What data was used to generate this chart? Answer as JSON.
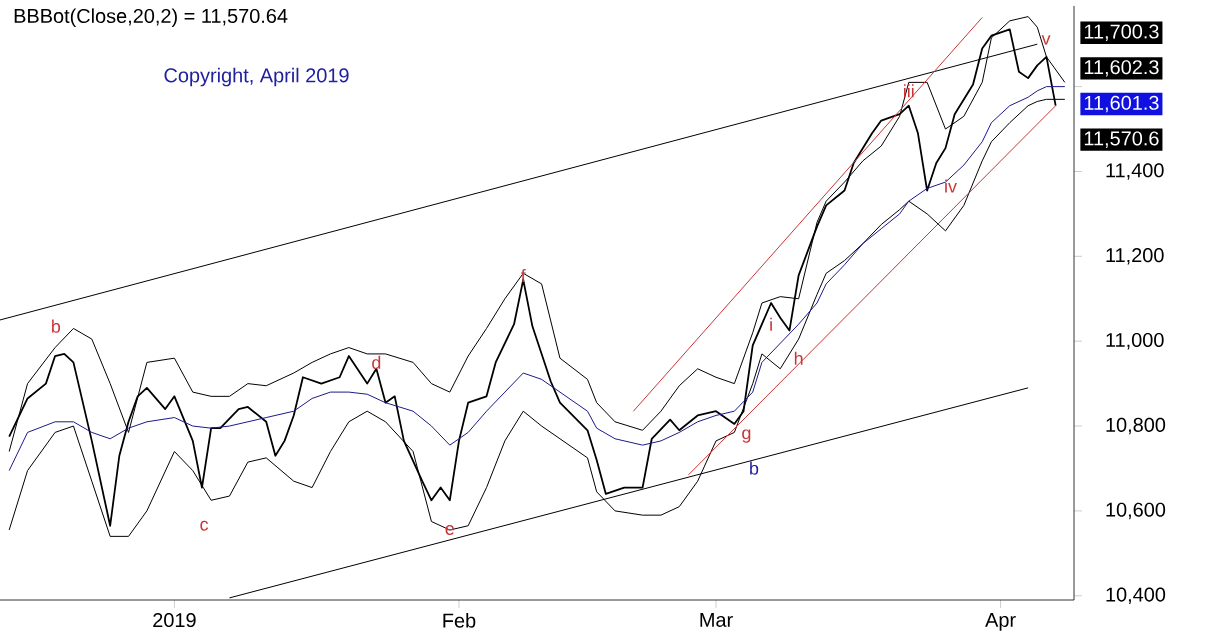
{
  "chart_data": {
    "type": "line",
    "x": [
      "2018-12-14",
      "2018-12-16",
      "2018-12-19",
      "2018-12-21",
      "2018-12-23",
      "2018-12-25",
      "2018-12-27",
      "2018-12-29",
      "2019-01-01",
      "2019-01-03",
      "2019-01-05",
      "2019-01-07",
      "2019-01-09",
      "2019-01-11",
      "2019-01-14",
      "2019-01-16",
      "2019-01-18",
      "2019-01-20",
      "2019-01-22",
      "2019-01-24",
      "2019-01-27",
      "2019-01-29",
      "2019-01-31",
      "2019-02-02",
      "2019-02-04",
      "2019-02-06",
      "2019-02-08",
      "2019-02-10",
      "2019-02-12",
      "2019-02-15",
      "2019-02-16",
      "2019-02-18",
      "2019-02-21",
      "2019-02-23",
      "2019-02-25",
      "2019-02-27",
      "2019-03-01",
      "2019-03-03",
      "2019-03-05",
      "2019-03-06",
      "2019-03-08",
      "2019-03-10",
      "2019-03-12",
      "2019-03-13",
      "2019-03-15",
      "2019-03-17",
      "2019-03-19",
      "2019-03-21",
      "2019-03-22",
      "2019-03-24",
      "2019-03-26",
      "2019-03-28",
      "2019-03-30",
      "2019-03-31",
      "2019-04-02",
      "2019-04-04",
      "2019-04-05",
      "2019-04-06",
      "2019-04-08"
    ],
    "series": [
      {
        "color": "#000000",
        "x": [
          "2018-12-14",
          "2018-12-16",
          "2018-12-18",
          "2018-12-19",
          "2018-12-20",
          "2018-12-21",
          "2018-12-23",
          "2018-12-25",
          "2018-12-26",
          "2018-12-27",
          "2018-12-28",
          "2018-12-29",
          "2018-12-31",
          "2019-01-01",
          "2019-01-03",
          "2019-01-04",
          "2019-01-05",
          "2019-01-06",
          "2019-01-08",
          "2019-01-09",
          "2019-01-11",
          "2019-01-12",
          "2019-01-13",
          "2019-01-14",
          "2019-01-15",
          "2019-01-17",
          "2019-01-19",
          "2019-01-20",
          "2019-01-22",
          "2019-01-23",
          "2019-01-24",
          "2019-01-25",
          "2019-01-26",
          "2019-01-28",
          "2019-01-29",
          "2019-01-30",
          "2019-01-31",
          "2019-02-01",
          "2019-02-02",
          "2019-02-04",
          "2019-02-05",
          "2019-02-07",
          "2019-02-08",
          "2019-02-09",
          "2019-02-11",
          "2019-02-12",
          "2019-02-15",
          "2019-02-16",
          "2019-02-17",
          "2019-02-19",
          "2019-02-21",
          "2019-02-22",
          "2019-02-24",
          "2019-02-25",
          "2019-02-27",
          "2019-03-01",
          "2019-03-03",
          "2019-03-04",
          "2019-03-05",
          "2019-03-07",
          "2019-03-08",
          "2019-03-09",
          "2019-03-10",
          "2019-03-12",
          "2019-03-13",
          "2019-03-15",
          "2019-03-16",
          "2019-03-18",
          "2019-03-19",
          "2019-03-21",
          "2019-03-22",
          "2019-03-23",
          "2019-03-24",
          "2019-03-25",
          "2019-03-26",
          "2019-03-27",
          "2019-03-29",
          "2019-03-30",
          "2019-03-31",
          "2019-04-02",
          "2019-04-03",
          "2019-04-04",
          "2019-04-05",
          "2019-04-06",
          "2019-04-07"
        ],
        "values": [
          10775,
          10865,
          10900,
          10965,
          10970,
          10950,
          10765,
          10565,
          10730,
          10810,
          10870,
          10890,
          10840,
          10870,
          10765,
          10655,
          10795,
          10795,
          10840,
          10845,
          10810,
          10730,
          10765,
          10825,
          10915,
          10900,
          10915,
          10965,
          10900,
          10935,
          10855,
          10870,
          10765,
          10670,
          10625,
          10655,
          10625,
          10765,
          10855,
          10870,
          10950,
          11040,
          11145,
          11035,
          10905,
          10855,
          10790,
          10720,
          10640,
          10655,
          10655,
          10770,
          10815,
          10790,
          10825,
          10835,
          10805,
          10835,
          10990,
          11090,
          11055,
          11025,
          11155,
          11270,
          11320,
          11355,
          11420,
          11490,
          11520,
          11535,
          11555,
          11490,
          11355,
          11420,
          11455,
          11535,
          11605,
          11690,
          11720,
          11735,
          11635,
          11620,
          11650,
          11670,
          11555
        ]
      },
      {
        "color": "#000000",
        "values": [
          10740,
          10900,
          10985,
          11030,
          11005,
          10900,
          10785,
          10950,
          10960,
          10880,
          10870,
          10870,
          10900,
          10895,
          10925,
          10950,
          10970,
          10985,
          10970,
          10970,
          10950,
          10900,
          10880,
          10965,
          11030,
          11100,
          11160,
          11135,
          10960,
          10910,
          10855,
          10810,
          10790,
          10835,
          10895,
          10935,
          10915,
          10900,
          11020,
          11090,
          11105,
          11100,
          11280,
          11330,
          11375,
          11425,
          11460,
          11530,
          11610,
          11610,
          11500,
          11530,
          11610,
          11715,
          11755,
          11765,
          11740,
          11670,
          11610
        ]
      },
      {
        "color": "#000000",
        "values": [
          10555,
          10695,
          10785,
          10800,
          10670,
          10540,
          10540,
          10600,
          10740,
          10695,
          10625,
          10635,
          10715,
          10725,
          10670,
          10655,
          10740,
          10810,
          10835,
          10810,
          10740,
          10575,
          10555,
          10565,
          10655,
          10765,
          10835,
          10800,
          10770,
          10725,
          10645,
          10600,
          10590,
          10590,
          10610,
          10670,
          10765,
          10785,
          10900,
          10970,
          10935,
          11005,
          11110,
          11160,
          11190,
          11230,
          11275,
          11310,
          11330,
          11300,
          11260,
          11320,
          11425,
          11470,
          11515,
          11555,
          11565,
          11570,
          11570
        ]
      },
      {
        "color": "#1a1a8c",
        "values": [
          10695,
          10785,
          10810,
          10810,
          10785,
          10770,
          10795,
          10810,
          10820,
          10800,
          10795,
          10800,
          10810,
          10820,
          10835,
          10865,
          10880,
          10880,
          10875,
          10855,
          10835,
          10800,
          10755,
          10785,
          10835,
          10880,
          10925,
          10910,
          10880,
          10835,
          10795,
          10770,
          10755,
          10765,
          10785,
          10810,
          10825,
          10835,
          10880,
          10950,
          10995,
          11040,
          11090,
          11135,
          11180,
          11230,
          11265,
          11300,
          11330,
          11360,
          11375,
          11415,
          11470,
          11515,
          11555,
          11575,
          11590,
          11600,
          11600
        ]
      },
      {
        "type": "line",
        "color": "#000000",
        "x": [
          "2018-12-13",
          "2019-04-05"
        ],
        "values": [
          11050,
          11700
        ]
      },
      {
        "type": "line",
        "color": "#000000",
        "x": [
          "2019-01-07",
          "2019-04-04"
        ],
        "values": [
          10395,
          10890
        ]
      },
      {
        "type": "line",
        "color": "#cc3333",
        "x": [
          "2019-02-20",
          "2019-03-30"
        ],
        "values": [
          10835,
          11763
        ]
      },
      {
        "type": "line",
        "color": "#cc3333",
        "x": [
          "2019-02-26",
          "2019-04-07"
        ],
        "values": [
          10685,
          11555
        ]
      }
    ],
    "xlim": [
      "2018-12-13",
      "2019-04-09"
    ],
    "xticks": [
      {
        "value": "2019-01-01",
        "label": "2019"
      },
      {
        "value": "2019-02-01",
        "label": "Feb"
      },
      {
        "value": "2019-03-01",
        "label": "Mar"
      },
      {
        "value": "2019-04-01",
        "label": "Apr"
      }
    ],
    "ylim": [
      10390,
      11790
    ],
    "yticks": [
      {
        "value": 10400,
        "label": "10,400"
      },
      {
        "value": 10600,
        "label": "10,600"
      },
      {
        "value": 10800,
        "label": "10,800"
      },
      {
        "value": 11000,
        "label": "11,000"
      },
      {
        "value": 11200,
        "label": "11,200"
      },
      {
        "value": 11400,
        "label": "11,400"
      },
      {
        "value": 11600,
        "label": null
      }
    ],
    "annotations": [
      "BBBot(Close,20,2) = 11,570.64",
      "Copyright, April 2019",
      "c",
      "g",
      "v",
      "b",
      "11,700.3",
      "11,602.3",
      "11,601.3",
      "11,570.6",
      "b",
      "iv",
      {
        "text": "d",
        "x": "2019-01-23",
        "y": 10950
      },
      {
        "text": "e",
        "x": "2019-01-31",
        "y": 10555
      },
      {
        "text": "f",
        "x": "2019-02-08",
        "y": 11155
      },
      {
        "text": "h",
        "x": "2019-03-10",
        "y": 10960
      },
      {
        "text": "i",
        "x": "2019-03-07",
        "y": 11040
      },
      {
        "text": "iii",
        "x": "2019-03-22",
        "y": 11590
      }
    ],
    "grid": false,
    "marker": "none",
    "line_style": "solid"
  }
}
